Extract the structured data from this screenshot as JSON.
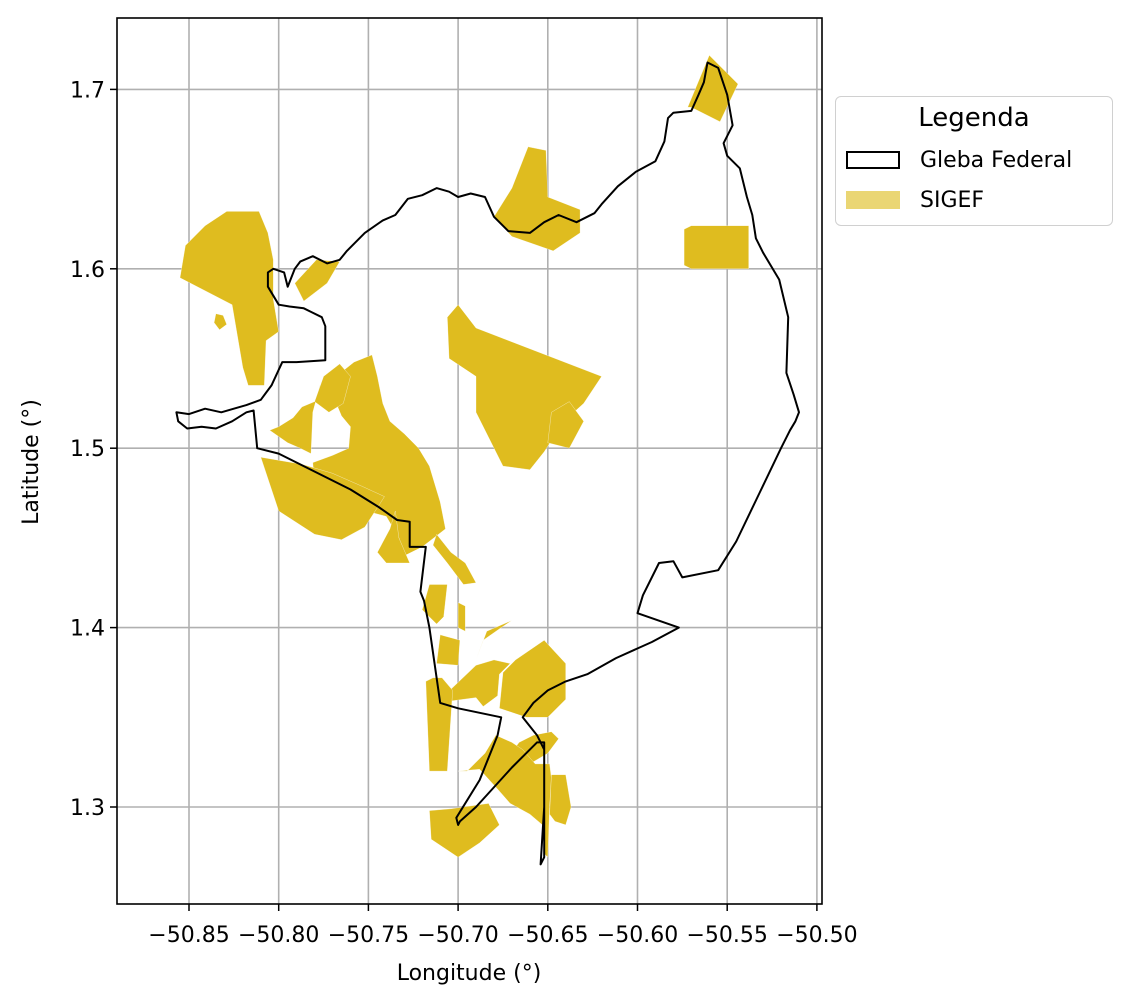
{
  "chart_data": {
    "type": "map",
    "xlabel": "Longitude (°)",
    "ylabel": "Latitude (°)",
    "xlim": [
      -50.89,
      -50.5
    ],
    "ylim": [
      1.245,
      1.74
    ],
    "xticks": [
      -50.85,
      -50.8,
      -50.75,
      -50.7,
      -50.65,
      -50.6,
      -50.55,
      -50.5
    ],
    "xtick_labels": [
      "−50.85",
      "−50.80",
      "−50.75",
      "−50.70",
      "−50.65",
      "−50.60",
      "−50.55",
      "−50.50"
    ],
    "yticks": [
      1.3,
      1.4,
      1.5,
      1.6,
      1.7
    ],
    "ytick_labels": [
      "1.3",
      "1.4",
      "1.5",
      "1.6",
      "1.7"
    ],
    "grid": true,
    "legend": {
      "title": "Legenda",
      "placement": "outside right, top",
      "items": [
        {
          "label": "Gleba Federal",
          "style": "outline",
          "color": "#000000"
        },
        {
          "label": "SIGEF",
          "style": "fill",
          "color": "#dfbc1f"
        }
      ]
    },
    "colors": {
      "sigef_fill": "#dfbc1f",
      "sigef_legend": "#ead674",
      "gleba_outline": "#000000",
      "grid": "#b0b0b0"
    },
    "gleba_federal": [
      [
        -50.654,
        1.268
      ],
      [
        -50.652,
        1.272
      ],
      [
        -50.652,
        1.3
      ],
      [
        -50.652,
        1.336
      ],
      [
        -50.656,
        1.336
      ],
      [
        -50.67,
        1.322
      ],
      [
        -50.69,
        1.3
      ],
      [
        -50.699,
        1.292
      ],
      [
        -50.7,
        1.29
      ],
      [
        -50.701,
        1.294
      ],
      [
        -50.688,
        1.315
      ],
      [
        -50.678,
        1.34
      ],
      [
        -50.676,
        1.35
      ],
      [
        -50.7,
        1.355
      ],
      [
        -50.71,
        1.358
      ],
      [
        -50.716,
        1.4
      ],
      [
        -50.719,
        1.415
      ],
      [
        -50.721,
        1.42
      ],
      [
        -50.718,
        1.445
      ],
      [
        -50.727,
        1.445
      ],
      [
        -50.727,
        1.459
      ],
      [
        -50.734,
        1.46
      ],
      [
        -50.744,
        1.467
      ],
      [
        -50.76,
        1.477
      ],
      [
        -50.8,
        1.497
      ],
      [
        -50.812,
        1.5
      ],
      [
        -50.814,
        1.521
      ],
      [
        -50.818,
        1.52
      ],
      [
        -50.826,
        1.515
      ],
      [
        -50.835,
        1.511
      ],
      [
        -50.843,
        1.512
      ],
      [
        -50.851,
        1.511
      ],
      [
        -50.856,
        1.515
      ],
      [
        -50.857,
        1.52
      ],
      [
        -50.85,
        1.519
      ],
      [
        -50.841,
        1.522
      ],
      [
        -50.832,
        1.52
      ],
      [
        -50.825,
        1.522
      ],
      [
        -50.818,
        1.524
      ],
      [
        -50.81,
        1.527
      ],
      [
        -50.807,
        1.531
      ],
      [
        -50.804,
        1.535
      ],
      [
        -50.798,
        1.548
      ],
      [
        -50.79,
        1.548
      ],
      [
        -50.774,
        1.549
      ],
      [
        -50.774,
        1.568
      ],
      [
        -50.776,
        1.573
      ],
      [
        -50.782,
        1.576
      ],
      [
        -50.786,
        1.578
      ],
      [
        -50.794,
        1.579
      ],
      [
        -50.8,
        1.58
      ],
      [
        -50.803,
        1.585
      ],
      [
        -50.806,
        1.59
      ],
      [
        -50.806,
        1.598
      ],
      [
        -50.803,
        1.6
      ],
      [
        -50.797,
        1.598
      ],
      [
        -50.795,
        1.59
      ],
      [
        -50.791,
        1.6
      ],
      [
        -50.788,
        1.604
      ],
      [
        -50.781,
        1.607
      ],
      [
        -50.773,
        1.603
      ],
      [
        -50.766,
        1.605
      ],
      [
        -50.762,
        1.61
      ],
      [
        -50.752,
        1.62
      ],
      [
        -50.742,
        1.627
      ],
      [
        -50.735,
        1.63
      ],
      [
        -50.728,
        1.639
      ],
      [
        -50.72,
        1.641
      ],
      [
        -50.712,
        1.645
      ],
      [
        -50.705,
        1.643
      ],
      [
        -50.7,
        1.64
      ],
      [
        -50.693,
        1.642
      ],
      [
        -50.685,
        1.64
      ],
      [
        -50.68,
        1.629
      ],
      [
        -50.672,
        1.621
      ],
      [
        -50.66,
        1.62
      ],
      [
        -50.652,
        1.626
      ],
      [
        -50.644,
        1.63
      ],
      [
        -50.634,
        1.626
      ],
      [
        -50.624,
        1.631
      ],
      [
        -50.62,
        1.636
      ],
      [
        -50.611,
        1.646
      ],
      [
        -50.601,
        1.654
      ],
      [
        -50.59,
        1.66
      ],
      [
        -50.585,
        1.671
      ],
      [
        -50.583,
        1.684
      ],
      [
        -50.58,
        1.687
      ],
      [
        -50.57,
        1.688
      ],
      [
        -50.566,
        1.697
      ],
      [
        -50.563,
        1.704
      ],
      [
        -50.561,
        1.715
      ],
      [
        -50.555,
        1.712
      ],
      [
        -50.55,
        1.697
      ],
      [
        -50.547,
        1.68
      ],
      [
        -50.552,
        1.67
      ],
      [
        -50.55,
        1.663
      ],
      [
        -50.543,
        1.656
      ],
      [
        -50.539,
        1.64
      ],
      [
        -50.536,
        1.63
      ],
      [
        -50.534,
        1.617
      ],
      [
        -50.53,
        1.609
      ],
      [
        -50.521,
        1.594
      ],
      [
        -50.516,
        1.573
      ],
      [
        -50.517,
        1.542
      ],
      [
        -50.513,
        1.53
      ],
      [
        -50.51,
        1.52
      ],
      [
        -50.512,
        1.515
      ],
      [
        -50.515,
        1.51
      ],
      [
        -50.52,
        1.5
      ],
      [
        -50.532,
        1.475
      ],
      [
        -50.545,
        1.448
      ],
      [
        -50.555,
        1.432
      ],
      [
        -50.575,
        1.428
      ],
      [
        -50.58,
        1.437
      ],
      [
        -50.588,
        1.436
      ],
      [
        -50.597,
        1.418
      ],
      [
        -50.6,
        1.408
      ],
      [
        -50.577,
        1.4
      ],
      [
        -50.592,
        1.392
      ],
      [
        -50.612,
        1.383
      ],
      [
        -50.628,
        1.374
      ],
      [
        -50.64,
        1.37
      ],
      [
        -50.65,
        1.365
      ],
      [
        -50.658,
        1.358
      ],
      [
        -50.664,
        1.35
      ],
      [
        -50.656,
        1.34
      ],
      [
        -50.652,
        1.332
      ],
      [
        -50.652,
        1.3
      ],
      [
        -50.654,
        1.268
      ]
    ],
    "sigef_parcels": [
      [
        [
          -50.572,
          1.69
        ],
        [
          -50.56,
          1.719
        ],
        [
          -50.544,
          1.703
        ],
        [
          -50.554,
          1.682
        ],
        [
          -50.57,
          1.69
        ]
      ],
      [
        [
          -50.67,
          1.645
        ],
        [
          -50.661,
          1.668
        ],
        [
          -50.651,
          1.666
        ],
        [
          -50.65,
          1.64
        ],
        [
          -50.632,
          1.633
        ],
        [
          -50.632,
          1.62
        ],
        [
          -50.647,
          1.61
        ],
        [
          -50.67,
          1.618
        ],
        [
          -50.68,
          1.629
        ]
      ],
      [
        [
          -50.574,
          1.602
        ],
        [
          -50.574,
          1.622
        ],
        [
          -50.57,
          1.624
        ],
        [
          -50.538,
          1.624
        ],
        [
          -50.538,
          1.6
        ],
        [
          -50.57,
          1.6
        ]
      ],
      [
        [
          -50.841,
          1.624
        ],
        [
          -50.829,
          1.632
        ],
        [
          -50.811,
          1.632
        ],
        [
          -50.806,
          1.62
        ],
        [
          -50.803,
          1.605
        ],
        [
          -50.803,
          1.583
        ],
        [
          -50.8,
          1.565
        ],
        [
          -50.807,
          1.56
        ],
        [
          -50.808,
          1.535
        ],
        [
          -50.817,
          1.535
        ],
        [
          -50.82,
          1.545
        ],
        [
          -50.826,
          1.58
        ],
        [
          -50.855,
          1.595
        ],
        [
          -50.852,
          1.613
        ]
      ],
      [
        [
          -50.791,
          1.592
        ],
        [
          -50.779,
          1.605
        ],
        [
          -50.766,
          1.604
        ],
        [
          -50.773,
          1.592
        ],
        [
          -50.786,
          1.582
        ]
      ],
      [
        [
          -50.835,
          1.575
        ],
        [
          -50.831,
          1.574
        ],
        [
          -50.829,
          1.569
        ],
        [
          -50.833,
          1.566
        ],
        [
          -50.836,
          1.57
        ]
      ],
      [
        [
          -50.748,
          1.552
        ],
        [
          -50.758,
          1.548
        ],
        [
          -50.768,
          1.54
        ],
        [
          -50.77,
          1.53
        ],
        [
          -50.765,
          1.518
        ],
        [
          -50.76,
          1.512
        ],
        [
          -50.761,
          1.5
        ],
        [
          -50.77,
          1.496
        ],
        [
          -50.781,
          1.492
        ],
        [
          -50.78,
          1.48
        ],
        [
          -50.764,
          1.47
        ],
        [
          -50.755,
          1.466
        ],
        [
          -50.74,
          1.462
        ],
        [
          -50.733,
          1.45
        ],
        [
          -50.73,
          1.44
        ],
        [
          -50.72,
          1.445
        ],
        [
          -50.707,
          1.455
        ],
        [
          -50.71,
          1.47
        ],
        [
          -50.716,
          1.49
        ],
        [
          -50.722,
          1.5
        ],
        [
          -50.73,
          1.508
        ],
        [
          -50.738,
          1.515
        ],
        [
          -50.742,
          1.525
        ],
        [
          -50.745,
          1.54
        ]
      ],
      [
        [
          -50.8,
          1.465
        ],
        [
          -50.78,
          1.452
        ],
        [
          -50.765,
          1.449
        ],
        [
          -50.752,
          1.456
        ],
        [
          -50.741,
          1.473
        ],
        [
          -50.754,
          1.479
        ],
        [
          -50.77,
          1.486
        ],
        [
          -50.787,
          1.491
        ],
        [
          -50.81,
          1.495
        ]
      ],
      [
        [
          -50.777,
          1.535
        ],
        [
          -50.773,
          1.53
        ],
        [
          -50.78,
          1.526
        ],
        [
          -50.787,
          1.523
        ],
        [
          -50.792,
          1.517
        ],
        [
          -50.8,
          1.512
        ],
        [
          -50.805,
          1.51
        ],
        [
          -50.795,
          1.503
        ],
        [
          -50.788,
          1.5
        ],
        [
          -50.782,
          1.497
        ],
        [
          -50.781,
          1.52
        ]
      ],
      [
        [
          -50.766,
          1.547
        ],
        [
          -50.76,
          1.54
        ],
        [
          -50.764,
          1.525
        ],
        [
          -50.772,
          1.52
        ],
        [
          -50.78,
          1.526
        ],
        [
          -50.775,
          1.54
        ]
      ],
      [
        [
          -50.735,
          1.465
        ],
        [
          -50.738,
          1.455
        ],
        [
          -50.745,
          1.442
        ],
        [
          -50.74,
          1.436
        ],
        [
          -50.727,
          1.436
        ],
        [
          -50.733,
          1.45
        ]
      ],
      [
        [
          -50.704,
          1.442
        ],
        [
          -50.696,
          1.436
        ],
        [
          -50.69,
          1.425
        ],
        [
          -50.697,
          1.424
        ],
        [
          -50.706,
          1.436
        ],
        [
          -50.714,
          1.446
        ],
        [
          -50.712,
          1.452
        ]
      ],
      [
        [
          -50.72,
          1.41
        ],
        [
          -50.716,
          1.424
        ],
        [
          -50.706,
          1.424
        ],
        [
          -50.708,
          1.406
        ],
        [
          -50.712,
          1.402
        ]
      ],
      [
        [
          -50.712,
          1.38
        ],
        [
          -50.7,
          1.379
        ],
        [
          -50.699,
          1.393
        ],
        [
          -50.71,
          1.396
        ]
      ],
      [
        [
          -50.7,
          1.414
        ],
        [
          -50.696,
          1.412
        ],
        [
          -50.696,
          1.398
        ],
        [
          -50.7,
          1.4
        ]
      ],
      [
        [
          -50.69,
          1.382
        ],
        [
          -50.686,
          1.393
        ],
        [
          -50.676,
          1.4
        ],
        [
          -50.67,
          1.404
        ],
        [
          -50.684,
          1.398
        ]
      ],
      [
        [
          -50.662,
          1.35
        ],
        [
          -50.65,
          1.35
        ],
        [
          -50.64,
          1.36
        ],
        [
          -50.64,
          1.38
        ],
        [
          -50.652,
          1.393
        ],
        [
          -50.668,
          1.382
        ],
        [
          -50.675,
          1.375
        ],
        [
          -50.677,
          1.355
        ]
      ],
      [
        [
          -50.712,
          1.358
        ],
        [
          -50.69,
          1.361
        ],
        [
          -50.686,
          1.356
        ],
        [
          -50.678,
          1.362
        ],
        [
          -50.677,
          1.374
        ],
        [
          -50.671,
          1.38
        ],
        [
          -50.68,
          1.382
        ],
        [
          -50.69,
          1.379
        ]
      ],
      [
        [
          -50.718,
          1.37
        ],
        [
          -50.716,
          1.32
        ],
        [
          -50.706,
          1.32
        ],
        [
          -50.703,
          1.365
        ],
        [
          -50.709,
          1.372
        ],
        [
          -50.714,
          1.372
        ]
      ],
      [
        [
          -50.672,
          1.328
        ],
        [
          -50.66,
          1.324
        ],
        [
          -50.65,
          1.33
        ],
        [
          -50.644,
          1.338
        ],
        [
          -50.648,
          1.342
        ],
        [
          -50.658,
          1.34
        ],
        [
          -50.666,
          1.336
        ]
      ],
      [
        [
          -50.7,
          1.32
        ],
        [
          -50.688,
          1.321
        ],
        [
          -50.678,
          1.31
        ],
        [
          -50.671,
          1.302
        ],
        [
          -50.66,
          1.296
        ],
        [
          -50.653,
          1.29
        ],
        [
          -50.652,
          1.274
        ],
        [
          -50.65,
          1.272
        ],
        [
          -50.649,
          1.3
        ],
        [
          -50.648,
          1.316
        ],
        [
          -50.649,
          1.324
        ],
        [
          -50.657,
          1.324
        ],
        [
          -50.664,
          1.332
        ],
        [
          -50.67,
          1.336
        ],
        [
          -50.679,
          1.34
        ],
        [
          -50.685,
          1.33
        ],
        [
          -50.695,
          1.32
        ]
      ],
      [
        [
          -50.649,
          1.296
        ],
        [
          -50.648,
          1.318
        ],
        [
          -50.64,
          1.318
        ],
        [
          -50.637,
          1.3
        ],
        [
          -50.64,
          1.29
        ],
        [
          -50.646,
          1.292
        ]
      ],
      [
        [
          -50.704,
          1.299
        ],
        [
          -50.683,
          1.302
        ],
        [
          -50.677,
          1.29
        ],
        [
          -50.688,
          1.28
        ],
        [
          -50.7,
          1.272
        ],
        [
          -50.715,
          1.282
        ],
        [
          -50.716,
          1.298
        ]
      ],
      [
        [
          -50.62,
          1.54
        ],
        [
          -50.63,
          1.525
        ],
        [
          -50.641,
          1.515
        ],
        [
          -50.652,
          1.498
        ],
        [
          -50.66,
          1.488
        ],
        [
          -50.675,
          1.49
        ],
        [
          -50.683,
          1.506
        ],
        [
          -50.69,
          1.52
        ],
        [
          -50.69,
          1.54
        ],
        [
          -50.705,
          1.55
        ],
        [
          -50.706,
          1.573
        ],
        [
          -50.7,
          1.58
        ],
        [
          -50.69,
          1.567
        ]
      ],
      [
        [
          -50.65,
          1.503
        ],
        [
          -50.638,
          1.5
        ],
        [
          -50.63,
          1.515
        ],
        [
          -50.638,
          1.526
        ],
        [
          -50.648,
          1.52
        ]
      ]
    ]
  }
}
